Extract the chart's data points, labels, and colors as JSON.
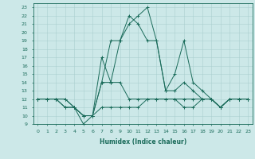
{
  "xlabel": "Humidex (Indice chaleur)",
  "bg_color": "#cce8e8",
  "line_color": "#1a6b5a",
  "grid_color": "#aacfcf",
  "xlim": [
    -0.5,
    23.5
  ],
  "ylim": [
    9,
    23.5
  ],
  "xticks": [
    0,
    1,
    2,
    3,
    4,
    5,
    6,
    7,
    8,
    9,
    10,
    11,
    12,
    13,
    14,
    15,
    16,
    17,
    18,
    19,
    20,
    21,
    22,
    23
  ],
  "yticks": [
    9,
    10,
    11,
    12,
    13,
    14,
    15,
    16,
    17,
    18,
    19,
    20,
    21,
    22,
    23
  ],
  "series": [
    [
      12,
      12,
      12,
      12,
      11,
      10,
      10,
      14,
      19,
      19,
      21,
      22,
      23,
      19,
      13,
      15,
      19,
      14,
      13,
      12,
      11,
      12,
      12,
      12
    ],
    [
      12,
      12,
      12,
      12,
      11,
      10,
      10,
      17,
      14,
      19,
      22,
      21,
      19,
      19,
      13,
      13,
      14,
      13,
      12,
      12,
      11,
      12,
      12,
      12
    ],
    [
      12,
      12,
      12,
      11,
      11,
      9,
      10,
      14,
      14,
      14,
      12,
      12,
      12,
      12,
      12,
      12,
      12,
      12,
      12,
      12,
      11,
      12,
      12,
      12
    ],
    [
      12,
      12,
      12,
      11,
      11,
      10,
      10,
      11,
      11,
      11,
      11,
      11,
      12,
      12,
      12,
      12,
      11,
      11,
      12,
      12,
      11,
      12,
      12,
      12
    ]
  ]
}
